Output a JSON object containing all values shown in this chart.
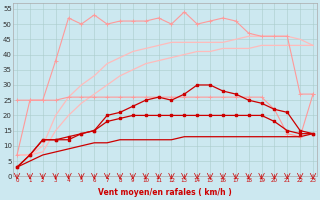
{
  "x": [
    0,
    1,
    2,
    3,
    4,
    5,
    6,
    7,
    8,
    9,
    10,
    11,
    12,
    13,
    14,
    15,
    16,
    17,
    18,
    19,
    20,
    21,
    22,
    23
  ],
  "y_pink_spiky": [
    7,
    25,
    25,
    38,
    52,
    50,
    53,
    50,
    51,
    51,
    51,
    52,
    50,
    54,
    50,
    51,
    52,
    51,
    47,
    46,
    46,
    46,
    27,
    27
  ],
  "y_pink_upper_smooth": [
    7,
    7,
    10,
    20,
    26,
    30,
    33,
    37,
    39,
    41,
    42,
    43,
    44,
    44,
    44,
    44,
    44,
    45,
    46,
    46,
    46,
    46,
    45,
    43
  ],
  "y_pink_lower_smooth": [
    7,
    7,
    8,
    15,
    20,
    24,
    27,
    30,
    33,
    35,
    37,
    38,
    39,
    40,
    41,
    41,
    42,
    42,
    42,
    43,
    43,
    43,
    43,
    43
  ],
  "y_pink_with_markers": [
    25,
    25,
    25,
    25,
    26,
    26,
    26,
    26,
    26,
    26,
    26,
    26,
    26,
    26,
    26,
    26,
    26,
    26,
    26,
    26,
    22,
    14,
    13,
    27
  ],
  "y_dark_markers_upper": [
    3,
    7,
    12,
    12,
    13,
    14,
    15,
    20,
    21,
    23,
    25,
    26,
    25,
    27,
    30,
    30,
    28,
    27,
    25,
    24,
    22,
    21,
    15,
    14
  ],
  "y_dark_markers_lower": [
    3,
    7,
    12,
    12,
    12,
    14,
    15,
    18,
    19,
    20,
    20,
    20,
    20,
    20,
    20,
    20,
    20,
    20,
    20,
    20,
    18,
    15,
    14,
    14
  ],
  "y_dark_smooth": [
    3,
    5,
    7,
    8,
    9,
    10,
    11,
    11,
    12,
    12,
    12,
    12,
    12,
    13,
    13,
    13,
    13,
    13,
    13,
    13,
    13,
    13,
    13,
    14
  ],
  "bg_color": "#cce8f0",
  "grid_color": "#aacccc",
  "pink_color": "#ff9999",
  "pink_light_color": "#ffbbbb",
  "dark_red_color": "#cc0000",
  "ylabel_ticks": [
    0,
    5,
    10,
    15,
    20,
    25,
    30,
    35,
    40,
    45,
    50,
    55
  ],
  "xlabel": "Vent moyen/en rafales ( km/h )",
  "xlim": [
    0,
    23
  ],
  "ylim": [
    0,
    57
  ]
}
